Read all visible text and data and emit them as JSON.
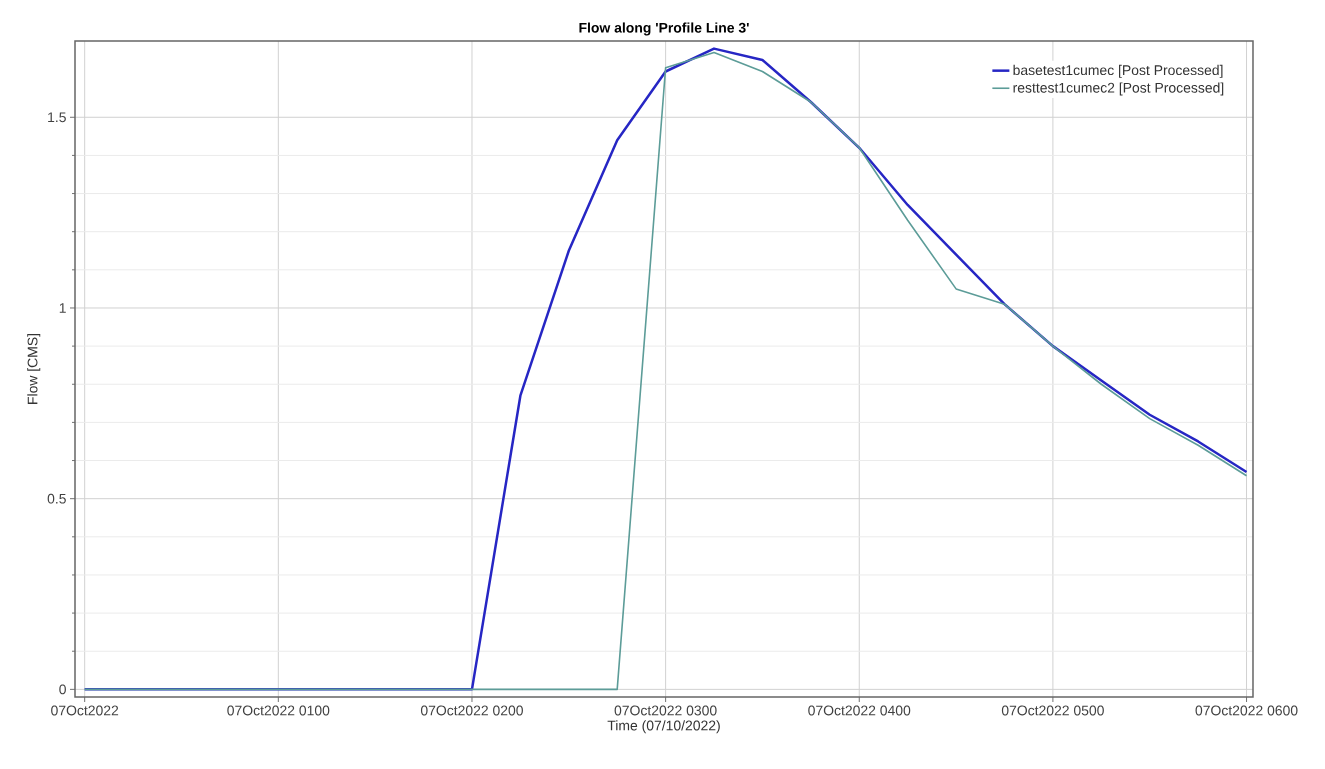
{
  "chart_data": {
    "type": "line",
    "title": "Flow along 'Profile Line 3'",
    "xlabel": "Time (07/10/2022)",
    "ylabel": "Flow [CMS]",
    "x": [
      "2022-10-07T00:00",
      "2022-10-07T00:15",
      "2022-10-07T00:30",
      "2022-10-07T00:45",
      "2022-10-07T01:00",
      "2022-10-07T01:15",
      "2022-10-07T01:30",
      "2022-10-07T01:45",
      "2022-10-07T02:00",
      "2022-10-07T02:15",
      "2022-10-07T02:30",
      "2022-10-07T02:45",
      "2022-10-07T03:00",
      "2022-10-07T03:15",
      "2022-10-07T03:30",
      "2022-10-07T03:45",
      "2022-10-07T04:00",
      "2022-10-07T04:15",
      "2022-10-07T04:30",
      "2022-10-07T04:45",
      "2022-10-07T05:00",
      "2022-10-07T05:15",
      "2022-10-07T05:30",
      "2022-10-07T05:45",
      "2022-10-07T06:00"
    ],
    "series": [
      {
        "name": "basetest1cumec [Post Processed]",
        "color": "#2626c4",
        "values": [
          0,
          0,
          0,
          0,
          0,
          0,
          0,
          0,
          0,
          0.77,
          1.15,
          1.44,
          1.62,
          1.68,
          1.65,
          1.54,
          1.42,
          1.27,
          1.14,
          1.01,
          0.9,
          0.81,
          0.72,
          0.65,
          0.57
        ]
      },
      {
        "name": "resttest1cumec2 [Post Processed]",
        "color": "#5c9c98",
        "values": [
          0,
          0,
          0,
          0,
          0,
          0,
          0,
          0,
          0,
          0,
          0,
          0,
          1.63,
          1.67,
          1.62,
          1.54,
          1.42,
          1.23,
          1.05,
          1.01,
          0.9,
          0.8,
          0.71,
          0.64,
          0.56
        ]
      }
    ],
    "xlim": [
      "2022-10-06T23:57",
      "2022-10-07T06:02"
    ],
    "ylim": [
      -0.02,
      1.7
    ],
    "xticks": [
      {
        "value": "2022-10-07T00:00",
        "label": "07Oct2022"
      },
      {
        "value": "2022-10-07T01:00",
        "label": "07Oct2022 0100"
      },
      {
        "value": "2022-10-07T02:00",
        "label": "07Oct2022 0200"
      },
      {
        "value": "2022-10-07T03:00",
        "label": "07Oct2022 0300"
      },
      {
        "value": "2022-10-07T04:00",
        "label": "07Oct2022 0400"
      },
      {
        "value": "2022-10-07T05:00",
        "label": "07Oct2022 0500"
      },
      {
        "value": "2022-10-07T06:00",
        "label": "07Oct2022 0600"
      }
    ],
    "yticks": [
      0,
      0.5,
      1,
      1.5
    ],
    "grid": true,
    "legend": "top right",
    "marker": "none",
    "line_style": "solid"
  }
}
